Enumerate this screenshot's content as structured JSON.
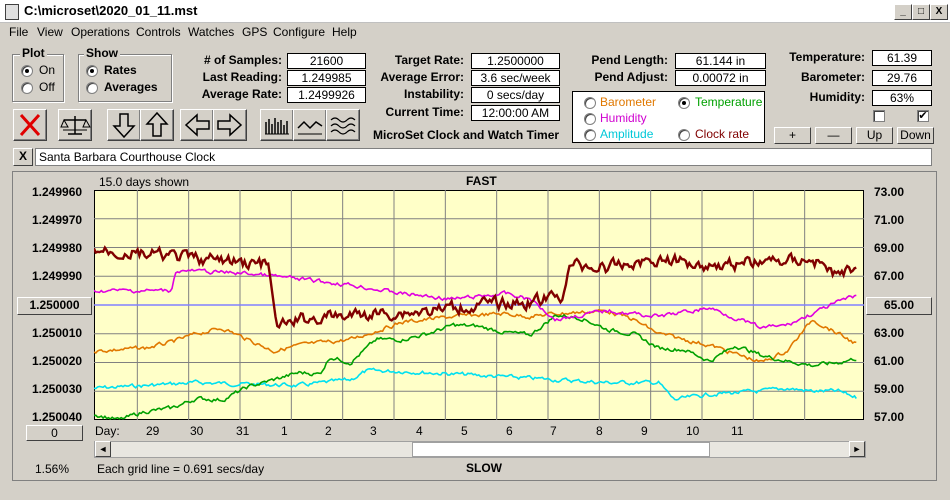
{
  "window": {
    "title": "C:\\microset\\2020_01_11.mst",
    "min": "_",
    "max": "□",
    "close": "X"
  },
  "menu": [
    "File",
    "View",
    "Operations",
    "Controls",
    "Watches",
    "GPS",
    "Configure",
    "Help"
  ],
  "plot_group": {
    "title": "Plot",
    "options": [
      {
        "label": "On",
        "selected": true
      },
      {
        "label": "Off",
        "selected": false
      }
    ]
  },
  "show_group": {
    "title": "Show",
    "options": [
      {
        "label": "Rates",
        "selected": true
      },
      {
        "label": "Averages",
        "selected": false
      }
    ]
  },
  "stats": {
    "samples_label": "# of Samples:",
    "samples": "21600",
    "last_label": "Last Reading:",
    "last": "1.249985",
    "avg_label": "Average Rate:",
    "avg": "1.2499926",
    "target_label": "Target Rate:",
    "target": "1.2500000",
    "err_label": "Average Error:",
    "err": "3.6 sec/week",
    "inst_label": "Instability:",
    "inst": "0 secs/day",
    "time_label": "Current Time:",
    "time": "12:00:00 AM",
    "pend_len_label": "Pend Length:",
    "pend_len": "61.144 in",
    "pend_adj_label": "Pend Adjust:",
    "pend_adj": "0.00072 in",
    "temp_label": "Temperature:",
    "temp": "61.39",
    "baro_label": "Barometer:",
    "baro": "29.76",
    "hum_label": "Humidity:",
    "hum": "63%"
  },
  "app_caption": "MicroSet Clock and Watch Timer",
  "sensor_select": [
    {
      "label": "Barometer",
      "color": "#e07800",
      "selected": false
    },
    {
      "label": "Temperature",
      "color": "#00a000",
      "selected": true
    },
    {
      "label": "Humidity",
      "color": "#d000d0",
      "selected": false
    },
    {
      "label": "Clock rate",
      "color": "#800000",
      "selected": false
    },
    {
      "label": "Amplitude",
      "color": "#00c8d8",
      "selected": false
    }
  ],
  "adjust_buttons": [
    "+",
    "—",
    "Up",
    "Down"
  ],
  "checkbox2": "✔",
  "clock_name": "Santa Barbara Courthouse Clock",
  "clear_button": "X",
  "graph": {
    "days_shown": "15.0 days shown",
    "top": "FAST",
    "bottom": "SLOW",
    "left_ticks": [
      "1.249960",
      "1.249970",
      "1.249980",
      "1.249990",
      "1.250000",
      "1.250010",
      "1.250020",
      "1.250030",
      "1.250040"
    ],
    "right_ticks": [
      "73.00",
      "71.00",
      "69.00",
      "67.00",
      "65.00",
      "63.00",
      "61.00",
      "59.00",
      "57.00"
    ],
    "left_center_button": "1.250000",
    "right_center_button": "65.00",
    "day_label": "Day:",
    "days": [
      "29",
      "30",
      "31",
      "1",
      "2",
      "3",
      "4",
      "5",
      "6",
      "7",
      "8",
      "9",
      "10",
      "11"
    ],
    "bottom_left_button": "0",
    "percent": "1.56%",
    "grid_note": "Each grid line = 0.691 secs/day",
    "scroll_left": "◄",
    "scroll_right": "►",
    "scroll_position": 0.68
  },
  "colors": {
    "plot_bg": "#ffffc8",
    "grid": "#808080",
    "rate": "#800000",
    "temperature": "#00a000",
    "humidity": "#e000e0",
    "barometer": "#e07800",
    "amplitude": "#00e0f0",
    "center_line": "#8080ff"
  },
  "chart_data": {
    "type": "line",
    "title": "",
    "y_left_range": [
      1.24996,
      1.25004
    ],
    "y_right_range": [
      57,
      73
    ],
    "x_range_days": [
      0,
      15
    ],
    "grid": true,
    "series": [
      {
        "name": "Clock rate",
        "axis": "left",
        "anchors": [
          [
            0,
            1.249981
          ],
          [
            0.8,
            1.249982
          ],
          [
            2,
            1.249984
          ],
          [
            3.4,
            1.249986
          ],
          [
            3.5,
            1.250002
          ],
          [
            3.6,
            1.250008
          ],
          [
            4,
            1.250005
          ],
          [
            5.5,
            1.250003
          ],
          [
            6.5,
            1.250002
          ],
          [
            7.5,
            1.25
          ],
          [
            8.5,
            1.249999
          ],
          [
            9.1,
            1.249997
          ],
          [
            9.3,
            1.249986
          ],
          [
            10,
            1.249987
          ],
          [
            11,
            1.249984
          ],
          [
            12,
            1.249986
          ],
          [
            13,
            1.249985
          ],
          [
            14,
            1.249984
          ],
          [
            14.5,
            1.24999
          ],
          [
            15,
            1.249985
          ]
        ],
        "noise": 1.8e-06
      },
      {
        "name": "Temperature",
        "axis": "right",
        "anchors": [
          [
            0,
            57.4
          ],
          [
            0.5,
            57.0
          ],
          [
            1,
            57.6
          ],
          [
            1.5,
            57.8
          ],
          [
            2,
            58.5
          ],
          [
            2.5,
            58.4
          ],
          [
            3,
            59.3
          ],
          [
            4,
            60.3
          ],
          [
            4.4,
            60.2
          ],
          [
            4.6,
            61.4
          ],
          [
            5,
            61.0
          ],
          [
            5.5,
            62.6
          ],
          [
            6,
            62.6
          ],
          [
            6.5,
            63.0
          ],
          [
            7,
            63.6
          ],
          [
            7.5,
            63.5
          ],
          [
            8,
            63.1
          ],
          [
            8.5,
            62.9
          ],
          [
            9,
            64.3
          ],
          [
            9.5,
            64.1
          ],
          [
            10,
            63.3
          ],
          [
            10.5,
            63.0
          ],
          [
            11,
            62.0
          ],
          [
            11.5,
            61.9
          ],
          [
            12,
            61.1
          ],
          [
            12.5,
            62.2
          ],
          [
            13,
            61.5
          ],
          [
            13.5,
            61.1
          ],
          [
            14,
            60.8
          ],
          [
            14.5,
            61.0
          ],
          [
            15,
            61.4
          ]
        ],
        "noise": 0.12
      },
      {
        "name": "Humidity",
        "axis": "left",
        "anchors": [
          [
            0,
            1.249995
          ],
          [
            1.5,
            1.249995
          ],
          [
            1.6,
            1.249988
          ],
          [
            3,
            1.249989
          ],
          [
            4,
            1.249991
          ],
          [
            5,
            1.249993
          ],
          [
            6,
            1.249996
          ],
          [
            7,
            1.249998
          ],
          [
            8,
            1.249996
          ],
          [
            8.5,
            1.249998
          ],
          [
            9,
            1.250005
          ],
          [
            10,
            1.250002
          ],
          [
            11,
            1.250004
          ],
          [
            12,
            1.250001
          ],
          [
            13,
            1.250008
          ],
          [
            13.5,
            1.250007
          ],
          [
            14,
            1.250003
          ],
          [
            14.5,
            1.249999
          ],
          [
            14.8,
            1.249997
          ],
          [
            15,
            1.249997
          ]
        ],
        "noise": 6e-07
      },
      {
        "name": "Barometer",
        "axis": "left",
        "anchors": [
          [
            0,
            1.250016
          ],
          [
            1,
            1.250015
          ],
          [
            1.5,
            1.250013
          ],
          [
            2,
            1.25001
          ],
          [
            2.5,
            1.250008
          ],
          [
            3,
            1.250012
          ],
          [
            3.5,
            1.250016
          ],
          [
            4,
            1.250014
          ],
          [
            5,
            1.250012
          ],
          [
            6,
            1.250006
          ],
          [
            7,
            1.250004
          ],
          [
            8,
            1.250003
          ],
          [
            8.5,
            1.250004
          ],
          [
            9,
            1.250003
          ],
          [
            10,
            1.250002
          ],
          [
            10.5,
            1.250005
          ],
          [
            11,
            1.25001
          ],
          [
            12,
            1.250014
          ],
          [
            12.5,
            1.250017
          ],
          [
            13,
            1.25002
          ],
          [
            13.5,
            1.250016
          ],
          [
            14,
            1.250005
          ],
          [
            14.5,
            1.25001
          ],
          [
            15,
            1.250015
          ]
        ],
        "noise": 6e-07
      },
      {
        "name": "Amplitude",
        "axis": "left",
        "anchors": [
          [
            0,
            1.250029
          ],
          [
            2,
            1.250027
          ],
          [
            4,
            1.250028
          ],
          [
            5,
            1.250026
          ],
          [
            5.3,
            1.250023
          ],
          [
            6,
            1.250023
          ],
          [
            7,
            1.250024
          ],
          [
            8,
            1.250025
          ],
          [
            9,
            1.250026
          ],
          [
            10,
            1.250027
          ],
          [
            11,
            1.250027
          ],
          [
            11.3,
            1.250033
          ],
          [
            12,
            1.250031
          ],
          [
            13,
            1.25003
          ],
          [
            13.5,
            1.250029
          ],
          [
            14,
            1.25003
          ],
          [
            14.5,
            1.25003
          ],
          [
            15,
            1.250033
          ]
        ],
        "noise": 6e-07
      }
    ]
  }
}
